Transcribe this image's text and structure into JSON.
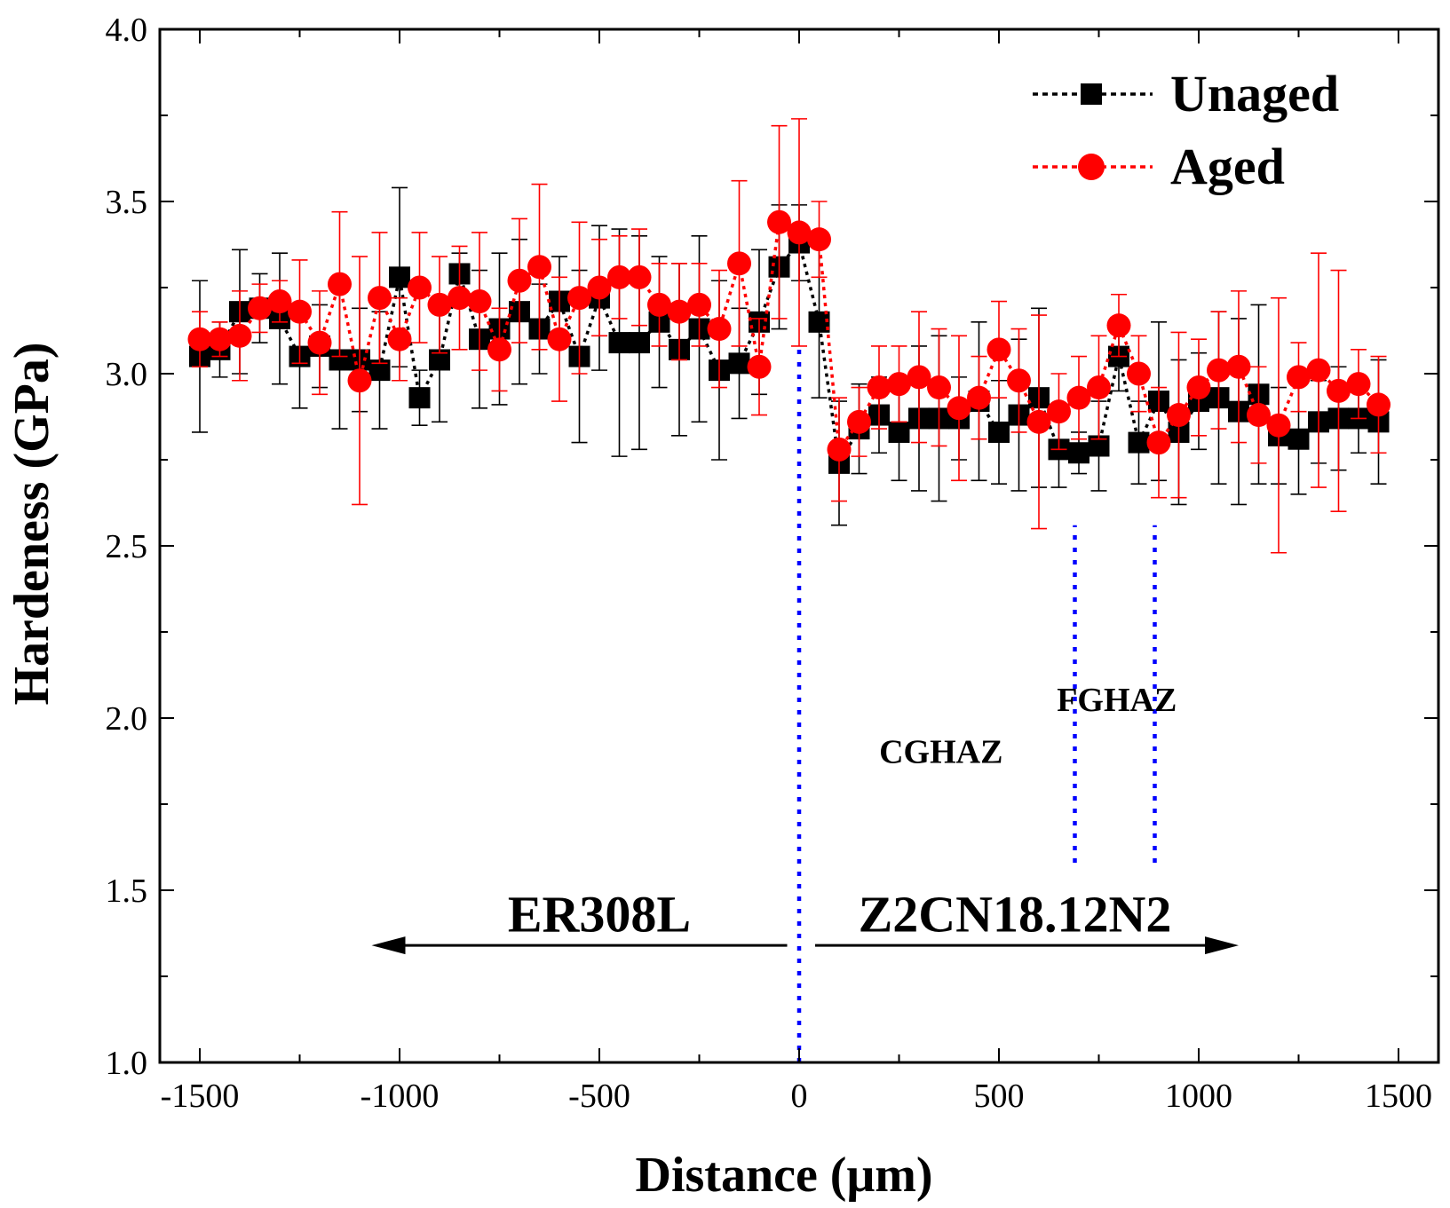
{
  "chart_data": {
    "type": "line",
    "title": "",
    "xlabel": "Distance (μm)",
    "ylabel": "Hardeness (GPa)",
    "xlim": [
      -1600,
      1600
    ],
    "ylim": [
      1.0,
      4.0
    ],
    "x_ticks": [
      -1500,
      -1000,
      -500,
      0,
      500,
      1000,
      1500
    ],
    "x_tick_labels": [
      "-1500",
      "-1000",
      "-500",
      "0",
      "500",
      "1000",
      "1500"
    ],
    "y_ticks": [
      1.0,
      1.5,
      2.0,
      2.5,
      3.0,
      3.5,
      4.0
    ],
    "y_tick_labels": [
      "1.0",
      "1.5",
      "2.0",
      "2.5",
      "3.0",
      "3.5",
      "4.0"
    ],
    "legend_position": "top-right",
    "series": [
      {
        "name": "Unaged",
        "color": "#000000",
        "marker": "square",
        "x": [
          -1500,
          -1450,
          -1400,
          -1350,
          -1300,
          -1250,
          -1200,
          -1150,
          -1100,
          -1050,
          -1000,
          -950,
          -900,
          -850,
          -800,
          -750,
          -700,
          -650,
          -600,
          -550,
          -500,
          -450,
          -400,
          -350,
          -300,
          -250,
          -200,
          -150,
          -100,
          -50,
          0,
          50,
          100,
          150,
          200,
          250,
          300,
          350,
          400,
          450,
          500,
          550,
          600,
          650,
          700,
          750,
          800,
          850,
          900,
          950,
          1000,
          1050,
          1100,
          1150,
          1200,
          1250,
          1300,
          1350,
          1400,
          1450
        ],
        "y": [
          3.05,
          3.07,
          3.18,
          3.19,
          3.16,
          3.05,
          3.08,
          3.04,
          3.04,
          3.01,
          3.28,
          2.93,
          3.04,
          3.29,
          3.1,
          3.13,
          3.18,
          3.13,
          3.21,
          3.05,
          3.22,
          3.09,
          3.09,
          3.15,
          3.07,
          3.13,
          3.01,
          3.03,
          3.15,
          3.31,
          3.38,
          3.15,
          2.74,
          2.84,
          2.88,
          2.83,
          2.87,
          2.87,
          2.87,
          2.92,
          2.83,
          2.88,
          2.93,
          2.78,
          2.77,
          2.79,
          3.05,
          2.8,
          2.92,
          2.83,
          2.92,
          2.93,
          2.89,
          2.94,
          2.82,
          2.81,
          2.86,
          2.87,
          2.87,
          2.86
        ],
        "err": [
          0.22,
          0.08,
          0.18,
          0.1,
          0.19,
          0.15,
          0.12,
          0.2,
          0.15,
          0.17,
          0.26,
          0.08,
          0.18,
          0.06,
          0.2,
          0.22,
          0.21,
          0.13,
          0.13,
          0.25,
          0.21,
          0.33,
          0.31,
          0.19,
          0.25,
          0.27,
          0.26,
          0.16,
          0.21,
          0.18,
          0.11,
          0.22,
          0.18,
          0.13,
          0.11,
          0.14,
          0.21,
          0.24,
          0.12,
          0.23,
          0.15,
          0.22,
          0.26,
          0.11,
          0.06,
          0.13,
          0.1,
          0.12,
          0.23,
          0.21,
          0.14,
          0.25,
          0.27,
          0.26,
          0.14,
          0.16,
          0.12,
          0.15,
          0.1,
          0.18
        ]
      },
      {
        "name": "Aged",
        "color": "#ff0000",
        "marker": "circle",
        "x": [
          -1500,
          -1450,
          -1400,
          -1350,
          -1300,
          -1250,
          -1200,
          -1150,
          -1100,
          -1050,
          -1000,
          -950,
          -900,
          -850,
          -800,
          -750,
          -700,
          -650,
          -600,
          -550,
          -500,
          -450,
          -400,
          -350,
          -300,
          -250,
          -200,
          -150,
          -100,
          -50,
          0,
          50,
          100,
          150,
          200,
          250,
          300,
          350,
          400,
          450,
          500,
          550,
          600,
          650,
          700,
          750,
          800,
          850,
          900,
          950,
          1000,
          1050,
          1100,
          1150,
          1200,
          1250,
          1300,
          1350,
          1400,
          1450
        ],
        "y": [
          3.1,
          3.1,
          3.11,
          3.19,
          3.21,
          3.18,
          3.09,
          3.26,
          2.98,
          3.22,
          3.1,
          3.25,
          3.2,
          3.22,
          3.21,
          3.07,
          3.27,
          3.31,
          3.1,
          3.22,
          3.25,
          3.28,
          3.28,
          3.2,
          3.18,
          3.2,
          3.13,
          3.32,
          3.02,
          3.44,
          3.41,
          3.39,
          2.78,
          2.86,
          2.96,
          2.97,
          2.99,
          2.96,
          2.9,
          2.93,
          3.07,
          2.98,
          2.86,
          2.89,
          2.93,
          2.96,
          3.14,
          3.0,
          2.8,
          2.88,
          2.96,
          3.01,
          3.02,
          2.88,
          2.85,
          2.99,
          3.01,
          2.95,
          2.97,
          2.91
        ],
        "err": [
          0.08,
          0.05,
          0.13,
          0.07,
          0.06,
          0.15,
          0.15,
          0.21,
          0.36,
          0.19,
          0.12,
          0.16,
          0.14,
          0.15,
          0.2,
          0.12,
          0.18,
          0.24,
          0.18,
          0.22,
          0.14,
          0.12,
          0.14,
          0.12,
          0.14,
          0.12,
          0.17,
          0.24,
          0.14,
          0.28,
          0.33,
          0.11,
          0.15,
          0.1,
          0.12,
          0.11,
          0.19,
          0.17,
          0.21,
          0.12,
          0.14,
          0.15,
          0.31,
          0.11,
          0.12,
          0.15,
          0.09,
          0.11,
          0.16,
          0.24,
          0.14,
          0.17,
          0.22,
          0.14,
          0.37,
          0.1,
          0.34,
          0.35,
          0.1,
          0.14
        ]
      }
    ],
    "boundaries": [
      {
        "x": 0,
        "y_from": 1.0,
        "y_to": 3.07
      },
      {
        "x": 690,
        "y_from": 1.58,
        "y_to": 2.56
      },
      {
        "x": 890,
        "y_from": 1.58,
        "y_to": 2.56
      }
    ],
    "annotations": [
      {
        "text": "ER308L",
        "x": -500,
        "y": 1.38,
        "size": "large"
      },
      {
        "text": "Z2CN18.12N2",
        "x": 540,
        "y": 1.38,
        "size": "large"
      },
      {
        "text": "CGHAZ",
        "x": 355,
        "y": 1.87,
        "size": "small"
      },
      {
        "text": "FGHAZ",
        "x": 795,
        "y": 2.02,
        "size": "small"
      }
    ],
    "arrows": [
      {
        "from_x": -30,
        "to_x": -1070,
        "y": 1.34
      },
      {
        "from_x": 40,
        "to_x": 1100,
        "y": 1.34
      }
    ]
  }
}
